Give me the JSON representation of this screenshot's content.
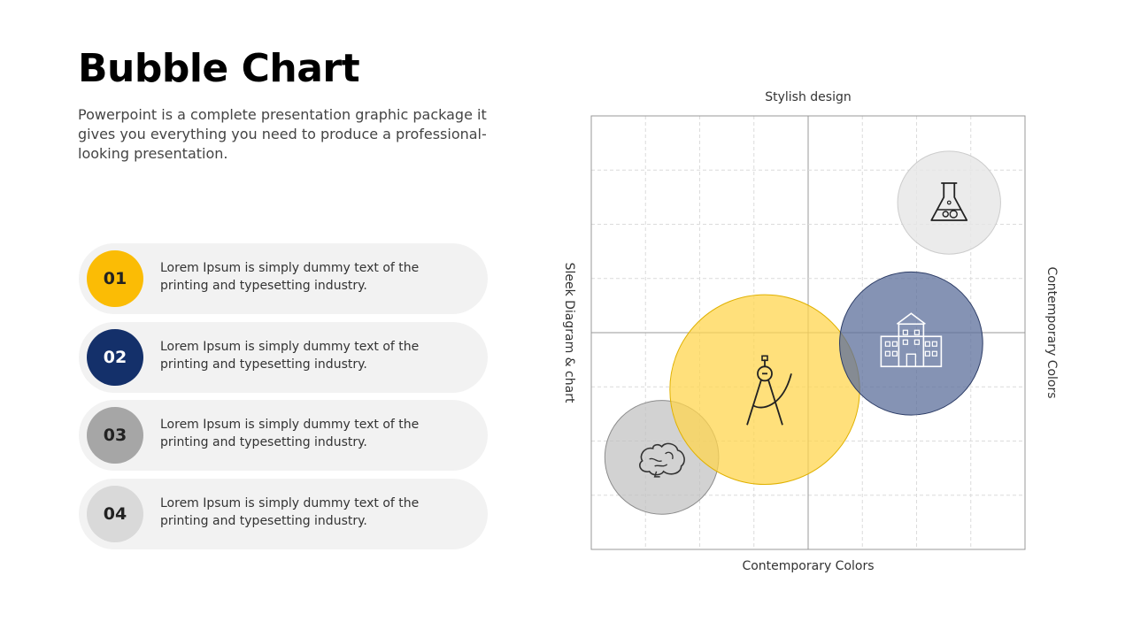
{
  "page": {
    "title": "Bubble Chart",
    "subtitle": "Powerpoint is a complete presentation graphic package it gives you everything you need to produce a professional-looking presentation."
  },
  "items": [
    {
      "number": "01",
      "text": "Lorem Ipsum is simply dummy text of the printing and typesetting industry.",
      "color": "#FBBC05",
      "text_color": "#222222"
    },
    {
      "number": "02",
      "text": "Lorem Ipsum is simply dummy text of the printing and typesetting industry.",
      "color": "#14306A",
      "text_color": "#FFFFFF"
    },
    {
      "number": "03",
      "text": "Lorem Ipsum is simply dummy text of the printing and typesetting industry.",
      "color": "#A6A6A6",
      "text_color": "#222222"
    },
    {
      "number": "04",
      "text": "Lorem Ipsum is simply dummy text of the printing and typesetting industry.",
      "color": "#D9D9D9",
      "text_color": "#222222"
    }
  ],
  "chart_data": {
    "type": "scatter",
    "title": "",
    "top_label": "Stylish design",
    "xlabel": "Contemporary Colors",
    "ylabel": "Sleek Diagram & chart",
    "right_label": "Contemporary Colors",
    "xlim": [
      0,
      8
    ],
    "ylim": [
      0,
      8
    ],
    "grid": true,
    "series": [
      {
        "x": 1.3,
        "y": 1.7,
        "size": 1.05,
        "color": "#BFBFBF",
        "opacity": 0.7,
        "stroke": "#8c8c8c",
        "icon": "brain-icon"
      },
      {
        "x": 3.2,
        "y": 2.95,
        "size": 1.75,
        "color": "#FFD54F",
        "opacity": 0.75,
        "stroke": "#e0b100",
        "icon": "compass-icon"
      },
      {
        "x": 5.9,
        "y": 3.8,
        "size": 1.32,
        "color": "#5C6F9B",
        "opacity": 0.75,
        "stroke": "#2c3c66",
        "icon": "building-icon"
      },
      {
        "x": 6.6,
        "y": 6.4,
        "size": 0.95,
        "color": "#E6E6E6",
        "opacity": 0.8,
        "stroke": "#cccccc",
        "icon": "flask-icon"
      }
    ]
  }
}
